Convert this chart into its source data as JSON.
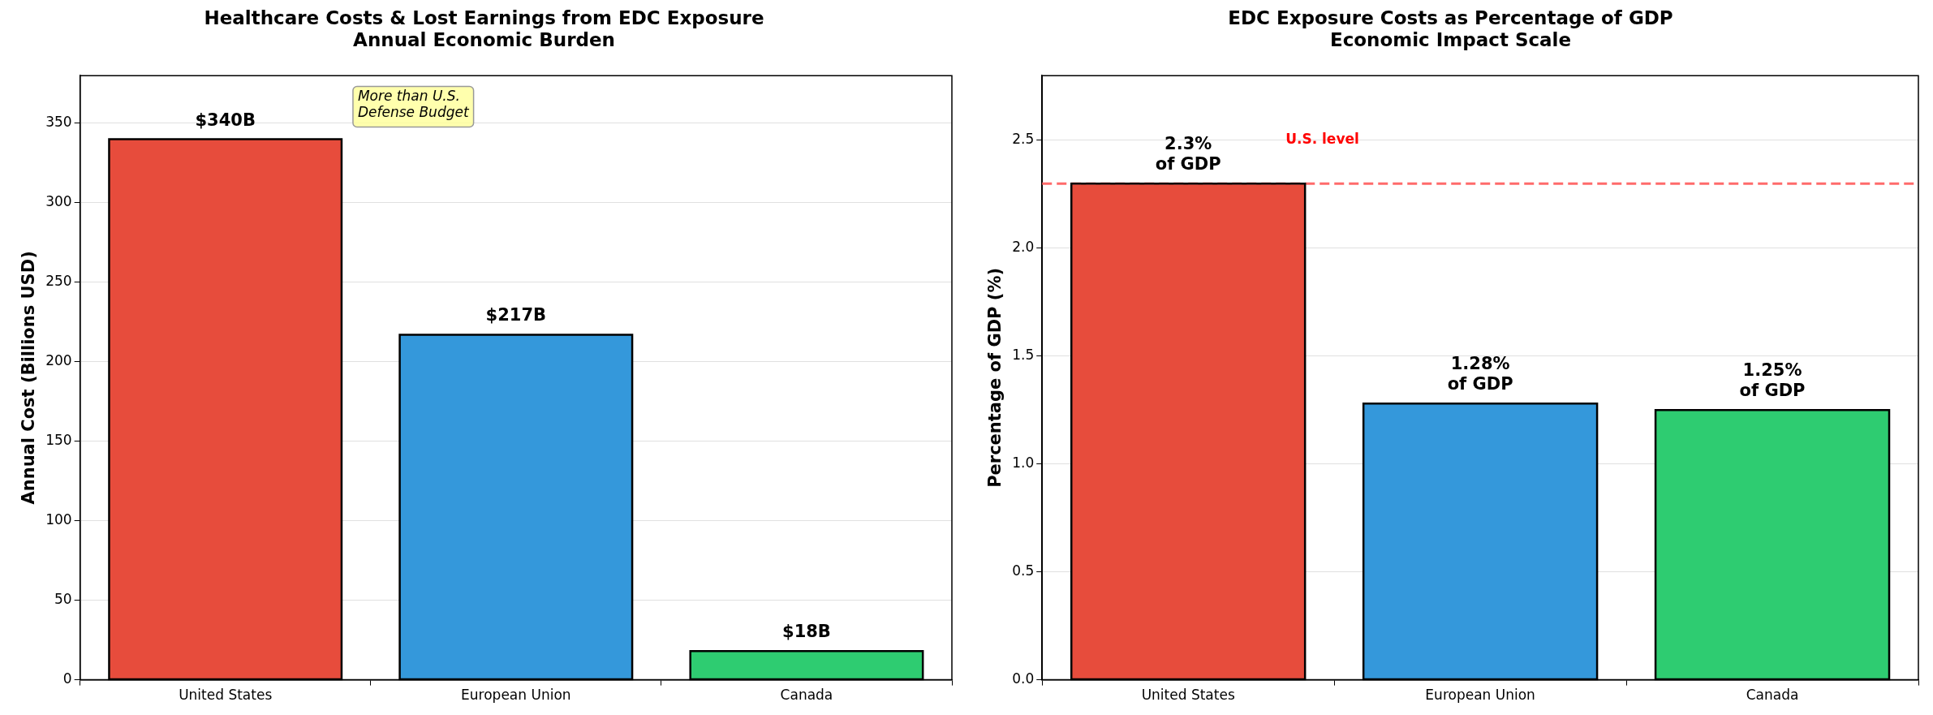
{
  "chart_data": [
    {
      "type": "bar",
      "title": "Healthcare Costs & Lost Earnings from EDC Exposure",
      "subtitle": "Annual Economic Burden",
      "ylabel": "Annual Cost (Billions USD)",
      "categories": [
        "United States",
        "European Union",
        "Canada"
      ],
      "values": [
        340,
        217,
        18
      ],
      "colors": [
        "#e74c3c",
        "#3498db",
        "#2ecc71"
      ],
      "value_labels": [
        "$340B",
        "$217B",
        "$18B"
      ],
      "ylim": [
        0,
        380
      ],
      "yticks": [
        0,
        50,
        100,
        150,
        200,
        250,
        300,
        350
      ],
      "grid": "y",
      "legend": false,
      "annotations": [
        "More than U.S.\nDefense Budget"
      ]
    },
    {
      "type": "bar",
      "title": "EDC Exposure Costs as Percentage of GDP",
      "subtitle": "Economic Impact Scale",
      "ylabel": "Percentage of GDP (%)",
      "categories": [
        "United States",
        "European Union",
        "Canada"
      ],
      "values": [
        2.3,
        1.28,
        1.25
      ],
      "colors": [
        "#e74c3c",
        "#3498db",
        "#2ecc71"
      ],
      "value_labels": [
        "2.3%\nof GDP",
        "1.28%\nof GDP",
        "1.25%\nof GDP"
      ],
      "ylim": [
        0,
        2.8
      ],
      "yticks": [
        {
          "value": 0,
          "label": "0.0"
        },
        0.5,
        {
          "value": 1,
          "label": "1.0"
        },
        1.5,
        {
          "value": 2,
          "label": "2.0"
        },
        2.5
      ],
      "grid": "y",
      "legend": false,
      "ref_lines": [
        {
          "axis": "y",
          "value": 2.3,
          "label": "U.S. level",
          "color": "#ff6b6b",
          "line_style": "dashed"
        }
      ]
    }
  ]
}
